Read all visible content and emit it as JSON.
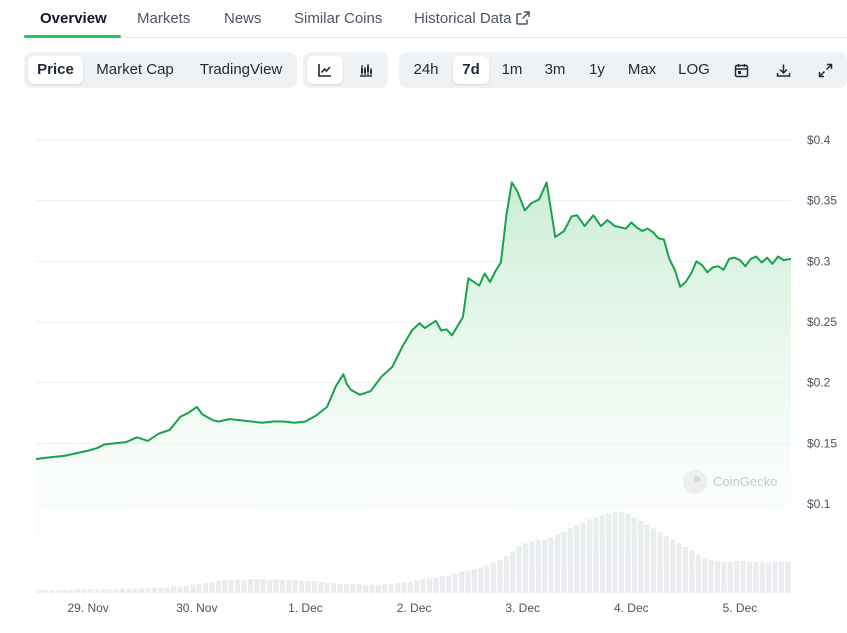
{
  "tabs": [
    {
      "label": "Overview",
      "active": true
    },
    {
      "label": "Markets"
    },
    {
      "label": "News"
    },
    {
      "label": "Similar Coins"
    },
    {
      "label": "Historical Data",
      "icon": "external-link-icon"
    }
  ],
  "toolbar": {
    "metrics": [
      "Price",
      "Market Cap",
      "TradingView"
    ],
    "selected_metric": "Price",
    "chart_types": [
      {
        "icon": "line-chart-icon",
        "selected": true
      },
      {
        "icon": "candlestick-chart-icon"
      }
    ],
    "ranges": [
      "24h",
      "7d",
      "1m",
      "3m",
      "1y",
      "Max",
      "LOG"
    ],
    "selected_range": "7d",
    "actions": [
      "calendar-icon",
      "download-icon",
      "fullscreen-icon"
    ]
  },
  "colors": {
    "line": "#16a34a",
    "area_top": "#c8ecd3",
    "volume": "#e5e7eb",
    "accent": "#22c55e"
  },
  "watermark": "CoinGecko",
  "chart_data": {
    "type": "line",
    "title": "",
    "xlabel": "",
    "ylabel": "",
    "y_tick_labels": [
      "$0.4",
      "$0.35",
      "$0.3",
      "$0.25",
      "$0.2",
      "$0.15",
      "$0.1"
    ],
    "y_ticks": [
      0.4,
      0.35,
      0.3,
      0.25,
      0.2,
      0.15,
      0.1
    ],
    "ylim": [
      0.1,
      0.4
    ],
    "x_tick_labels": [
      "29. Nov",
      "30. Nov",
      "1. Dec",
      "2. Dec",
      "3. Dec",
      "4. Dec",
      "5. Dec"
    ],
    "x_ticks": [
      1,
      2,
      3,
      4,
      5,
      6,
      7
    ],
    "xlim": [
      0.52,
      7.47
    ],
    "grid": true,
    "series": [
      {
        "x": [
          0.52,
          0.6,
          0.7,
          0.8,
          0.9,
          1.0,
          1.08,
          1.15,
          1.25,
          1.35,
          1.45,
          1.55,
          1.65,
          1.75,
          1.85,
          1.92,
          2.0,
          2.05,
          2.15,
          2.2,
          2.3,
          2.4,
          2.5,
          2.6,
          2.7,
          2.8,
          2.9,
          3.0,
          3.1,
          3.2,
          3.28,
          3.35,
          3.38,
          3.42,
          3.5,
          3.6,
          3.7,
          3.8,
          3.85,
          3.9,
          3.98,
          4.05,
          4.1,
          4.2,
          4.25,
          4.3,
          4.35,
          4.45,
          4.5,
          4.6,
          4.65,
          4.7,
          4.75,
          4.8,
          4.85,
          4.9,
          4.95,
          5.02,
          5.08,
          5.15,
          5.22,
          5.3,
          5.38,
          5.45,
          5.5,
          5.57,
          5.65,
          5.72,
          5.78,
          5.85,
          5.95,
          6.0,
          6.05,
          6.1,
          6.15,
          6.2,
          6.25,
          6.3,
          6.35,
          6.4,
          6.45,
          6.5,
          6.55,
          6.6,
          6.65,
          6.7,
          6.75,
          6.8,
          6.85,
          6.9,
          6.95,
          7.0,
          7.05,
          7.1,
          7.15,
          7.2,
          7.25,
          7.3,
          7.35,
          7.4,
          7.47
        ],
        "y": [
          0.137,
          0.138,
          0.139,
          0.14,
          0.142,
          0.144,
          0.146,
          0.149,
          0.15,
          0.151,
          0.155,
          0.152,
          0.158,
          0.161,
          0.172,
          0.175,
          0.18,
          0.174,
          0.169,
          0.168,
          0.17,
          0.169,
          0.168,
          0.167,
          0.168,
          0.168,
          0.167,
          0.168,
          0.173,
          0.18,
          0.197,
          0.207,
          0.199,
          0.194,
          0.19,
          0.193,
          0.205,
          0.213,
          0.222,
          0.231,
          0.243,
          0.249,
          0.245,
          0.251,
          0.243,
          0.244,
          0.239,
          0.254,
          0.286,
          0.28,
          0.29,
          0.283,
          0.292,
          0.299,
          0.338,
          0.365,
          0.358,
          0.342,
          0.348,
          0.351,
          0.365,
          0.32,
          0.325,
          0.337,
          0.338,
          0.329,
          0.338,
          0.329,
          0.334,
          0.329,
          0.327,
          0.332,
          0.328,
          0.325,
          0.327,
          0.324,
          0.319,
          0.318,
          0.302,
          0.293,
          0.279,
          0.283,
          0.29,
          0.3,
          0.297,
          0.291,
          0.295,
          0.296,
          0.293,
          0.302,
          0.303,
          0.301,
          0.296,
          0.302,
          0.304,
          0.299,
          0.303,
          0.298,
          0.304,
          0.301,
          0.302
        ]
      }
    ],
    "volume_bars": [
      3,
      3,
      3,
      3,
      3,
      3,
      4,
      4,
      4,
      4,
      4,
      4,
      4,
      5,
      5,
      5,
      5,
      5,
      6,
      6,
      6,
      7,
      7,
      8,
      9,
      10,
      11,
      12,
      13,
      14,
      14,
      15,
      14,
      15,
      15,
      15,
      14,
      15,
      14,
      14,
      14,
      13,
      13,
      13,
      12,
      11,
      11,
      10,
      10,
      10,
      10,
      9,
      9,
      9,
      10,
      10,
      11,
      12,
      12,
      14,
      15,
      16,
      17,
      18,
      19,
      21,
      23,
      24,
      26,
      28,
      30,
      33,
      36,
      40,
      45,
      51,
      54,
      56,
      58,
      58,
      60,
      63,
      66,
      70,
      73,
      76,
      80,
      82,
      84,
      86,
      88,
      88,
      86,
      82,
      78,
      74,
      70,
      66,
      62,
      58,
      54,
      50,
      46,
      42,
      38,
      36,
      35,
      34,
      34,
      35,
      35,
      34,
      34,
      33,
      33,
      34,
      34,
      34
    ]
  }
}
